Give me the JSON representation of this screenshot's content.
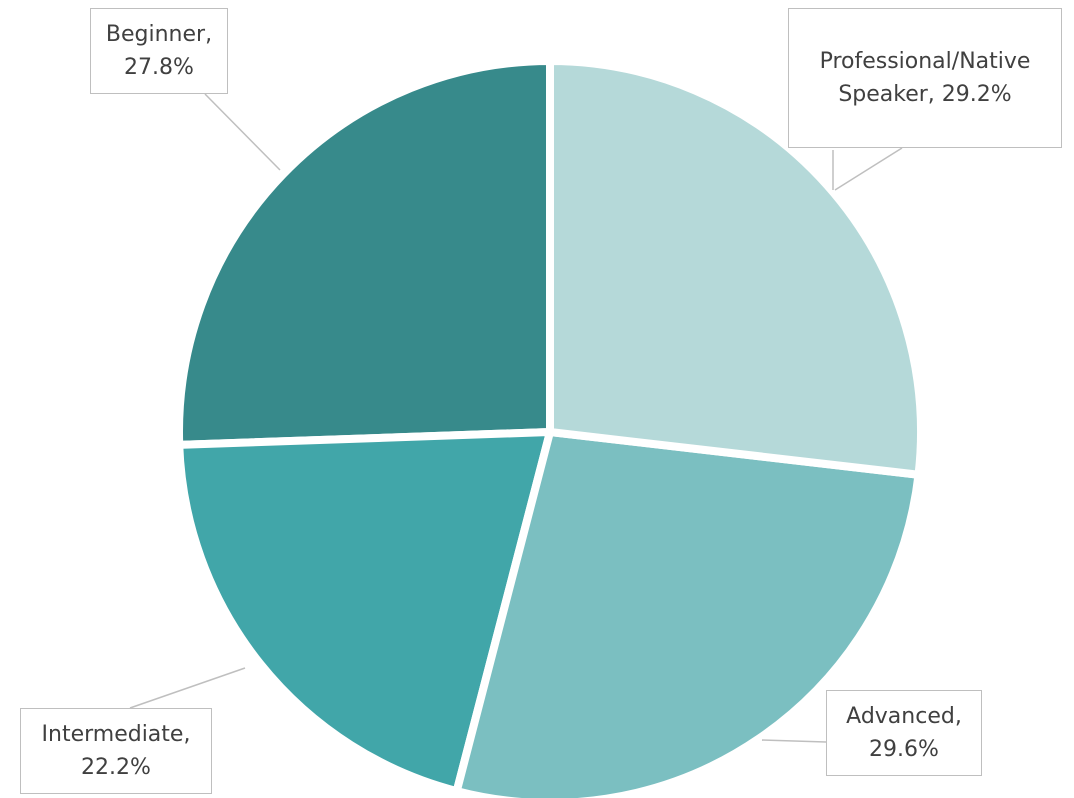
{
  "chart_data": {
    "type": "pie",
    "categories": [
      "Professional/Native Speaker",
      "Advanced",
      "Intermediate",
      "Beginner"
    ],
    "values": [
      29.2,
      29.6,
      22.2,
      27.8
    ],
    "value_labels": [
      "29.2%",
      "29.6%",
      "22.2%",
      "27.8%"
    ],
    "separator": ", ",
    "colors": [
      "#b5d9d9",
      "#7bbfc1",
      "#41a6a9",
      "#378a8b"
    ]
  }
}
